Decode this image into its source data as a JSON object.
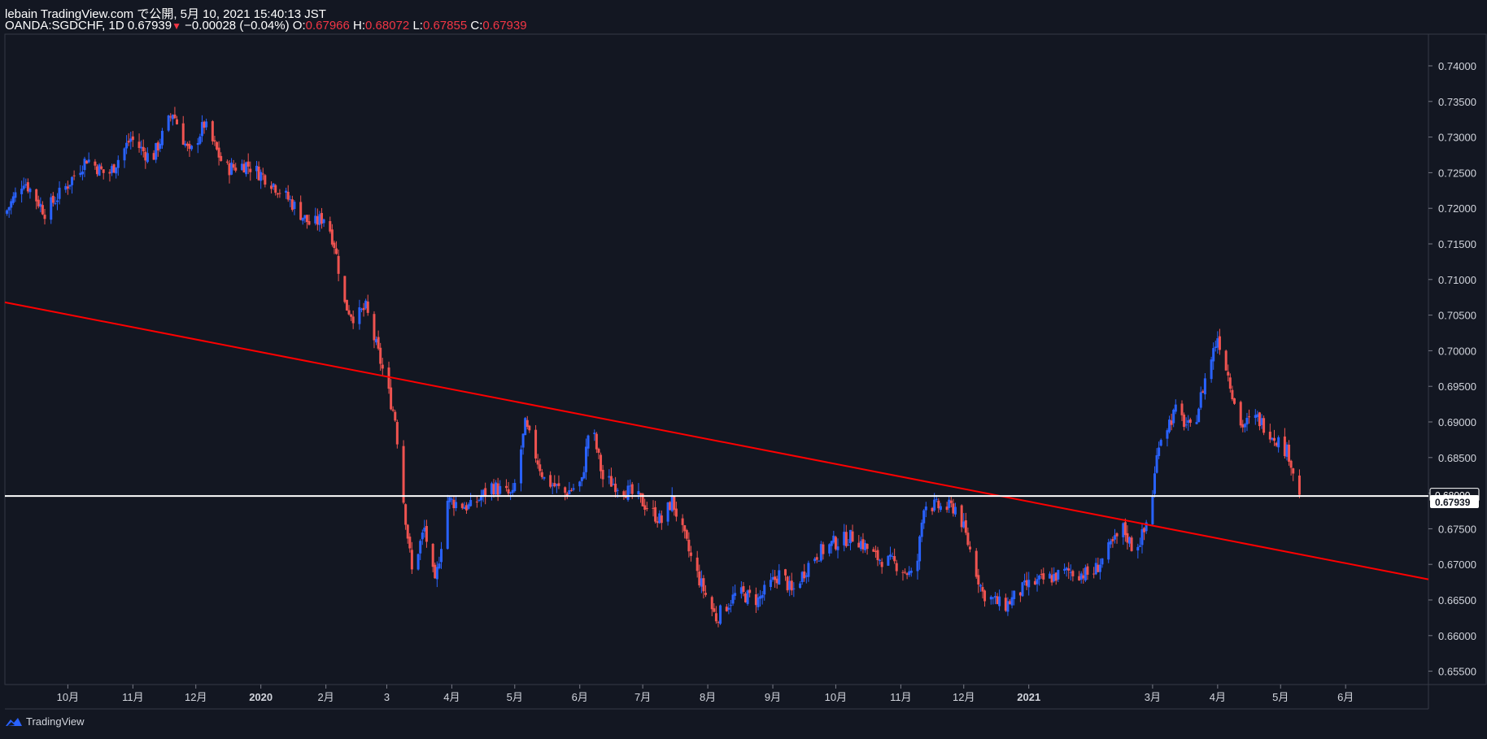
{
  "header": {
    "line1": "lebain TradingView.com で公開, 5月 10, 2021 15:40:13 JST",
    "symbol": "OANDA:SGDCHF, 1D",
    "last": "0.67939",
    "arrow": "▼",
    "change": "−0.00028 (−0.04%)",
    "o_label": "O:",
    "o_val": "0.67966",
    "h_label": "H:",
    "h_val": "0.68072",
    "l_label": "L:",
    "l_val": "0.67855",
    "c_label": "C:",
    "c_val": "0.67939"
  },
  "footer": {
    "brand": "TradingView"
  },
  "colors": {
    "bg": "#131722",
    "up": "#2962ff",
    "down": "#ef5350",
    "trend": "#ff0000",
    "hline": "#ffffff",
    "grid": "#2a2e39"
  },
  "chart_data": {
    "type": "candlestick",
    "symbol": "OANDA:SGDCHF",
    "interval": "1D",
    "ylim": [
      0.6525,
      0.7425
    ],
    "y_ticks": [
      "0.74000",
      "0.73500",
      "0.73000",
      "0.72500",
      "0.72000",
      "0.71500",
      "0.71000",
      "0.70500",
      "0.70000",
      "0.69500",
      "0.69000",
      "0.68500",
      "0.68000",
      "0.67500",
      "0.67000",
      "0.66500",
      "0.66000",
      "0.65500"
    ],
    "x_ticks": [
      "10月",
      "11月",
      "12月",
      "2020",
      "2月",
      "3",
      "4月",
      "5月",
      "6月",
      "7月",
      "8月",
      "9月",
      "10月",
      "11月",
      "12月",
      "2021",
      "3月",
      "4月",
      "5月",
      "6月"
    ],
    "x_tick_dates": [
      "2019-10-01",
      "2019-11-01",
      "2019-12-01",
      "2020-01-01",
      "2020-02-01",
      "2020-03-01",
      "2020-04-01",
      "2020-05-01",
      "2020-06-01",
      "2020-07-01",
      "2020-08-01",
      "2020-09-01",
      "2020-10-01",
      "2020-11-01",
      "2020-12-01",
      "2021-01-01",
      "2021-03-01",
      "2021-04-01",
      "2021-05-01",
      "2021-06-01"
    ],
    "price_labels": [
      {
        "value": "0.68000",
        "style": "outline"
      },
      {
        "value": "0.67939",
        "style": "current"
      }
    ],
    "horizontal_line": 0.6796,
    "trendline": [
      {
        "date": "2019-09-01",
        "price": 0.7068
      },
      {
        "date": "2021-06-30",
        "price": 0.6685
      }
    ],
    "path": [
      [
        "2019-09-01",
        0.7192
      ],
      [
        "2019-09-10",
        0.724
      ],
      [
        "2019-09-20",
        0.7195
      ],
      [
        "2019-09-30",
        0.723
      ],
      [
        "2019-10-10",
        0.727
      ],
      [
        "2019-10-20",
        0.7245
      ],
      [
        "2019-10-31",
        0.7298
      ],
      [
        "2019-11-10",
        0.7268
      ],
      [
        "2019-11-20",
        0.7335
      ],
      [
        "2019-11-28",
        0.7275
      ],
      [
        "2019-12-05",
        0.7318
      ],
      [
        "2019-12-15",
        0.7255
      ],
      [
        "2019-12-25",
        0.7262
      ],
      [
        "2020-01-05",
        0.724
      ],
      [
        "2020-01-15",
        0.721
      ],
      [
        "2020-01-25",
        0.7175
      ],
      [
        "2020-02-01",
        0.719
      ],
      [
        "2020-02-05",
        0.715
      ],
      [
        "2020-02-10",
        0.7065
      ],
      [
        "2020-02-15",
        0.7045
      ],
      [
        "2020-02-20",
        0.706
      ],
      [
        "2020-02-27",
        0.6985
      ],
      [
        "2020-03-05",
        0.6905
      ],
      [
        "2020-03-09",
        0.679
      ],
      [
        "2020-03-13",
        0.669
      ],
      [
        "2020-03-19",
        0.675
      ],
      [
        "2020-03-24",
        0.667
      ],
      [
        "2020-03-30",
        0.679
      ],
      [
        "2020-04-10",
        0.678
      ],
      [
        "2020-04-20",
        0.681
      ],
      [
        "2020-04-30",
        0.6795
      ],
      [
        "2020-05-06",
        0.6895
      ],
      [
        "2020-05-15",
        0.682
      ],
      [
        "2020-05-25",
        0.68
      ],
      [
        "2020-06-02",
        0.6815
      ],
      [
        "2020-06-06",
        0.6905
      ],
      [
        "2020-06-12",
        0.682
      ],
      [
        "2020-06-20",
        0.681
      ],
      [
        "2020-06-30",
        0.679
      ],
      [
        "2020-07-10",
        0.676
      ],
      [
        "2020-07-15",
        0.679
      ],
      [
        "2020-07-25",
        0.67
      ],
      [
        "2020-08-01",
        0.665
      ],
      [
        "2020-08-05",
        0.6625
      ],
      [
        "2020-08-15",
        0.666
      ],
      [
        "2020-08-25",
        0.665
      ],
      [
        "2020-09-05",
        0.669
      ],
      [
        "2020-09-10",
        0.666
      ],
      [
        "2020-09-20",
        0.671
      ],
      [
        "2020-09-30",
        0.673
      ],
      [
        "2020-10-10",
        0.674
      ],
      [
        "2020-10-20",
        0.671
      ],
      [
        "2020-10-30",
        0.67
      ],
      [
        "2020-11-08",
        0.668
      ],
      [
        "2020-11-12",
        0.6785
      ],
      [
        "2020-11-20",
        0.678
      ],
      [
        "2020-11-28",
        0.678
      ],
      [
        "2020-12-05",
        0.671
      ],
      [
        "2020-12-10",
        0.666
      ],
      [
        "2020-12-20",
        0.664
      ],
      [
        "2020-12-31",
        0.667
      ],
      [
        "2021-01-10",
        0.668
      ],
      [
        "2021-01-20",
        0.669
      ],
      [
        "2021-01-31",
        0.6685
      ],
      [
        "2021-02-08",
        0.672
      ],
      [
        "2021-02-15",
        0.675
      ],
      [
        "2021-02-20",
        0.672
      ],
      [
        "2021-02-25",
        0.6745
      ],
      [
        "2021-03-01",
        0.68
      ],
      [
        "2021-03-04",
        0.6875
      ],
      [
        "2021-03-12",
        0.6915
      ],
      [
        "2021-03-20",
        0.6885
      ],
      [
        "2021-03-26",
        0.696
      ],
      [
        "2021-04-01",
        0.702
      ],
      [
        "2021-04-04",
        0.699
      ],
      [
        "2021-04-12",
        0.6895
      ],
      [
        "2021-04-20",
        0.6905
      ],
      [
        "2021-04-28",
        0.688
      ],
      [
        "2021-05-05",
        0.6855
      ],
      [
        "2021-05-10",
        0.6794
      ]
    ]
  }
}
